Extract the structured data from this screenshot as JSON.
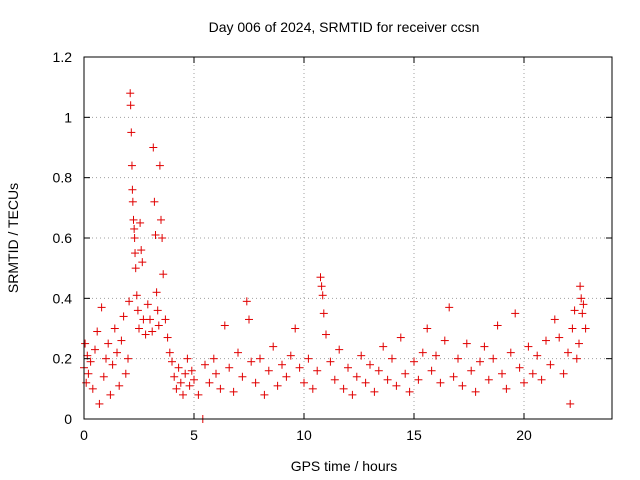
{
  "chart_data": {
    "type": "scatter",
    "title": "Day 006 of 2024, SRMTID for receiver ccsn",
    "xlabel": "GPS time / hours",
    "ylabel": "SRMTID / TECUs",
    "xlim": [
      0,
      24
    ],
    "ylim": [
      0,
      1.2
    ],
    "x_ticks": [
      0,
      5,
      10,
      15,
      20
    ],
    "x_tick_labels": [
      "0",
      "5",
      "10",
      "15",
      "20"
    ],
    "y_ticks": [
      0,
      0.2,
      0.4,
      0.6,
      0.8,
      1.0,
      1.2
    ],
    "y_tick_labels": [
      "0",
      "0.2",
      "0.4",
      "0.6",
      "0.8",
      "1",
      "1.2"
    ],
    "grid": true,
    "marker": "+",
    "series": [
      {
        "name": "SRMTID",
        "color": "#e00000",
        "x_range": [
          0,
          22.8
        ],
        "sample_interval_hours": 0.0083,
        "note": "dense point cloud; points below are representative of the visible distribution",
        "points": [
          [
            0.0,
            0.17
          ],
          [
            0.05,
            0.25
          ],
          [
            0.1,
            0.12
          ],
          [
            0.15,
            0.21
          ],
          [
            0.2,
            0.15
          ],
          [
            0.3,
            0.19
          ],
          [
            0.4,
            0.1
          ],
          [
            0.5,
            0.23
          ],
          [
            0.6,
            0.29
          ],
          [
            0.7,
            0.05
          ],
          [
            0.8,
            0.37
          ],
          [
            0.9,
            0.14
          ],
          [
            1.0,
            0.2
          ],
          [
            1.1,
            0.25
          ],
          [
            1.2,
            0.08
          ],
          [
            1.3,
            0.18
          ],
          [
            1.4,
            0.3
          ],
          [
            1.5,
            0.22
          ],
          [
            1.6,
            0.11
          ],
          [
            1.7,
            0.26
          ],
          [
            1.8,
            0.34
          ],
          [
            1.9,
            0.15
          ],
          [
            2.0,
            0.2
          ],
          [
            2.05,
            0.39
          ],
          [
            2.1,
            1.08
          ],
          [
            2.12,
            1.04
          ],
          [
            2.15,
            0.95
          ],
          [
            2.18,
            0.84
          ],
          [
            2.2,
            0.76
          ],
          [
            2.22,
            0.72
          ],
          [
            2.25,
            0.66
          ],
          [
            2.28,
            0.63
          ],
          [
            2.3,
            0.6
          ],
          [
            2.32,
            0.55
          ],
          [
            2.35,
            0.5
          ],
          [
            2.4,
            0.41
          ],
          [
            2.45,
            0.36
          ],
          [
            2.5,
            0.3
          ],
          [
            2.55,
            0.65
          ],
          [
            2.6,
            0.56
          ],
          [
            2.65,
            0.52
          ],
          [
            2.7,
            0.33
          ],
          [
            2.8,
            0.28
          ],
          [
            2.9,
            0.38
          ],
          [
            3.0,
            0.33
          ],
          [
            3.1,
            0.29
          ],
          [
            3.15,
            0.9
          ],
          [
            3.2,
            0.72
          ],
          [
            3.25,
            0.61
          ],
          [
            3.3,
            0.42
          ],
          [
            3.35,
            0.36
          ],
          [
            3.4,
            0.31
          ],
          [
            3.45,
            0.84
          ],
          [
            3.5,
            0.66
          ],
          [
            3.55,
            0.6
          ],
          [
            3.6,
            0.48
          ],
          [
            3.7,
            0.33
          ],
          [
            3.8,
            0.27
          ],
          [
            3.9,
            0.22
          ],
          [
            4.0,
            0.19
          ],
          [
            4.1,
            0.14
          ],
          [
            4.2,
            0.1
          ],
          [
            4.3,
            0.17
          ],
          [
            4.4,
            0.12
          ],
          [
            4.5,
            0.08
          ],
          [
            4.6,
            0.15
          ],
          [
            4.7,
            0.2
          ],
          [
            4.8,
            0.11
          ],
          [
            4.9,
            0.16
          ],
          [
            5.0,
            0.13
          ],
          [
            5.2,
            0.08
          ],
          [
            5.4,
            0.0
          ],
          [
            5.5,
            0.18
          ],
          [
            5.7,
            0.12
          ],
          [
            5.9,
            0.2
          ],
          [
            6.0,
            0.15
          ],
          [
            6.2,
            0.1
          ],
          [
            6.4,
            0.31
          ],
          [
            6.6,
            0.17
          ],
          [
            6.8,
            0.09
          ],
          [
            7.0,
            0.22
          ],
          [
            7.2,
            0.14
          ],
          [
            7.4,
            0.39
          ],
          [
            7.5,
            0.33
          ],
          [
            7.6,
            0.19
          ],
          [
            7.8,
            0.12
          ],
          [
            8.0,
            0.2
          ],
          [
            8.2,
            0.08
          ],
          [
            8.4,
            0.16
          ],
          [
            8.6,
            0.24
          ],
          [
            8.8,
            0.11
          ],
          [
            9.0,
            0.18
          ],
          [
            9.2,
            0.14
          ],
          [
            9.4,
            0.21
          ],
          [
            9.6,
            0.3
          ],
          [
            9.8,
            0.17
          ],
          [
            10.0,
            0.12
          ],
          [
            10.2,
            0.2
          ],
          [
            10.4,
            0.1
          ],
          [
            10.6,
            0.16
          ],
          [
            10.75,
            0.47
          ],
          [
            10.8,
            0.44
          ],
          [
            10.85,
            0.41
          ],
          [
            10.9,
            0.35
          ],
          [
            11.0,
            0.28
          ],
          [
            11.2,
            0.19
          ],
          [
            11.4,
            0.13
          ],
          [
            11.6,
            0.23
          ],
          [
            11.8,
            0.1
          ],
          [
            12.0,
            0.17
          ],
          [
            12.2,
            0.08
          ],
          [
            12.4,
            0.14
          ],
          [
            12.6,
            0.21
          ],
          [
            12.8,
            0.12
          ],
          [
            13.0,
            0.18
          ],
          [
            13.2,
            0.09
          ],
          [
            13.4,
            0.16
          ],
          [
            13.6,
            0.24
          ],
          [
            13.8,
            0.13
          ],
          [
            14.0,
            0.2
          ],
          [
            14.2,
            0.11
          ],
          [
            14.4,
            0.27
          ],
          [
            14.6,
            0.15
          ],
          [
            14.8,
            0.09
          ],
          [
            15.0,
            0.19
          ],
          [
            15.2,
            0.13
          ],
          [
            15.4,
            0.22
          ],
          [
            15.6,
            0.3
          ],
          [
            15.8,
            0.16
          ],
          [
            16.0,
            0.21
          ],
          [
            16.2,
            0.12
          ],
          [
            16.4,
            0.26
          ],
          [
            16.6,
            0.37
          ],
          [
            16.8,
            0.14
          ],
          [
            17.0,
            0.2
          ],
          [
            17.2,
            0.11
          ],
          [
            17.4,
            0.25
          ],
          [
            17.6,
            0.16
          ],
          [
            17.8,
            0.09
          ],
          [
            18.0,
            0.19
          ],
          [
            18.2,
            0.24
          ],
          [
            18.4,
            0.13
          ],
          [
            18.6,
            0.2
          ],
          [
            18.8,
            0.31
          ],
          [
            19.0,
            0.15
          ],
          [
            19.2,
            0.1
          ],
          [
            19.4,
            0.22
          ],
          [
            19.6,
            0.35
          ],
          [
            19.8,
            0.17
          ],
          [
            20.0,
            0.12
          ],
          [
            20.2,
            0.24
          ],
          [
            20.4,
            0.15
          ],
          [
            20.6,
            0.21
          ],
          [
            20.8,
            0.13
          ],
          [
            21.0,
            0.26
          ],
          [
            21.2,
            0.18
          ],
          [
            21.4,
            0.33
          ],
          [
            21.6,
            0.27
          ],
          [
            21.8,
            0.15
          ],
          [
            22.0,
            0.22
          ],
          [
            22.1,
            0.05
          ],
          [
            22.2,
            0.3
          ],
          [
            22.3,
            0.36
          ],
          [
            22.4,
            0.2
          ],
          [
            22.5,
            0.25
          ],
          [
            22.55,
            0.44
          ],
          [
            22.6,
            0.4
          ],
          [
            22.65,
            0.35
          ],
          [
            22.7,
            0.38
          ],
          [
            22.8,
            0.3
          ]
        ]
      }
    ]
  }
}
